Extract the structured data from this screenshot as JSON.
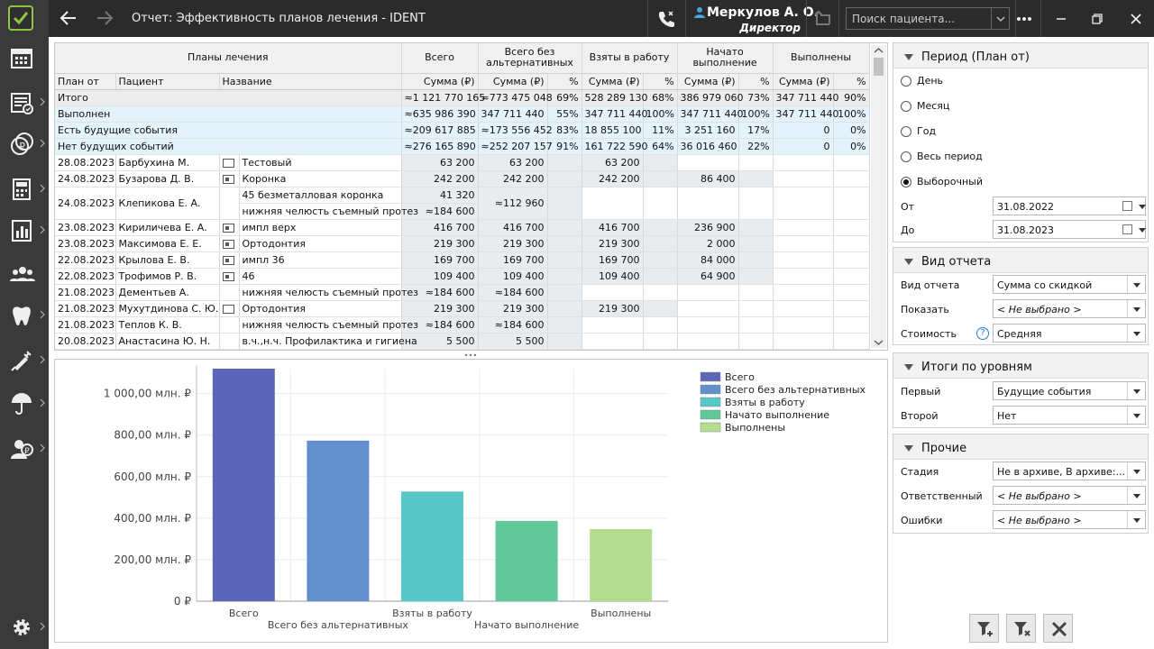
{
  "window": {
    "title": "Отчет: Эффективность планов лечения - IDENT",
    "user_name": "Меркулов А. О.",
    "user_role": "Директор",
    "search_placeholder": "Поиск пациента..."
  },
  "sidebar": [
    "calendar-icon",
    "ledger-icon",
    "finance-icon",
    "calculator-icon",
    "reports-icon",
    "patients-icon",
    "tooth-icon",
    "syringe-icon",
    "insurance-icon",
    "doctor-icon",
    "settings-icon"
  ],
  "table": {
    "header": {
      "plans": "Планы лечения",
      "total": "Всего",
      "no_alt": "Всего без альтернативных",
      "taken": "Взяты в работу",
      "started": "Начато выполнение",
      "done": "Выполнены",
      "plan_from": "План от",
      "patient": "Пациент",
      "name": "Название",
      "sum": "Сумма (₽)",
      "pct": "%"
    },
    "totals": [
      [
        "Итого",
        "",
        "",
        "≈1 121 770 165",
        "≈773 475 048",
        "69%",
        "528 289 130",
        "68%",
        "386 979 060",
        "73%",
        "347 711 440",
        "90%"
      ],
      [
        "Выполнен",
        "",
        "",
        "≈635 986 390",
        "347 711 440",
        "55%",
        "347 711 440",
        "100%",
        "347 711 440",
        "100%",
        "347 711 440",
        "100%"
      ],
      [
        "Есть будущие события",
        "",
        "",
        "≈209 617 885",
        "≈173 556 452",
        "83%",
        "18 855 100",
        "11%",
        "3 251 160",
        "17%",
        "0",
        "0%"
      ],
      [
        "Нет будущих событий",
        "",
        "",
        "≈276 165 890",
        "≈252 207 157",
        "91%",
        "161 722 590",
        "64%",
        "36 016 460",
        "22%",
        "0",
        "0%"
      ]
    ],
    "rows": [
      {
        "date": "28.08.2023",
        "patient": "Барбухина М.",
        "cb": "empty",
        "name": "Тестовый",
        "total": "63 200",
        "no_alt": "63 200",
        "pct1": "",
        "taken": "63 200",
        "pct2": "",
        "started": "",
        "pct3": "",
        "done": "",
        "pct4": ""
      },
      {
        "date": "24.08.2023",
        "patient": "Бузарова Д. В.",
        "cb": "filled",
        "name": "Коронка",
        "total": "242 200",
        "no_alt": "242 200",
        "pct1": "",
        "taken": "242 200",
        "pct2": "",
        "started": "86 400",
        "pct3": "",
        "done": "",
        "pct4": ""
      },
      {
        "date": "24.08.2023",
        "patient": "Клепикова Е. А.",
        "cb": "",
        "name": "45 безметалловая коронка",
        "name2": "нижняя челюсть съемный протез",
        "total": "41 320",
        "total2": "≈184 600",
        "no_alt": "≈112 960",
        "pct1": "",
        "taken": "",
        "pct2": "",
        "started": "",
        "pct3": "",
        "done": "",
        "pct4": ""
      },
      {
        "date": "23.08.2023",
        "patient": "Кириличева Е. А.",
        "cb": "filled",
        "name": "импл верх",
        "total": "416 700",
        "no_alt": "416 700",
        "pct1": "",
        "taken": "416 700",
        "pct2": "",
        "started": "236 900",
        "pct3": "",
        "done": "",
        "pct4": ""
      },
      {
        "date": "23.08.2023",
        "patient": "Максимова Е. Е.",
        "cb": "filled",
        "name": "Ортодонтия",
        "total": "219 300",
        "no_alt": "219 300",
        "pct1": "",
        "taken": "219 300",
        "pct2": "",
        "started": "2 000",
        "pct3": "",
        "done": "",
        "pct4": ""
      },
      {
        "date": "22.08.2023",
        "patient": "Крылова Е. В.",
        "cb": "filled",
        "name": "импл 36",
        "total": "169 700",
        "no_alt": "169 700",
        "pct1": "",
        "taken": "169 700",
        "pct2": "",
        "started": "84 000",
        "pct3": "",
        "done": "",
        "pct4": ""
      },
      {
        "date": "22.08.2023",
        "patient": "Трофимов Р. В.",
        "cb": "filled",
        "name": "46",
        "total": "109 400",
        "no_alt": "109 400",
        "pct1": "",
        "taken": "109 400",
        "pct2": "",
        "started": "64 900",
        "pct3": "",
        "done": "",
        "pct4": ""
      },
      {
        "date": "21.08.2023",
        "patient": "Дементьев А.",
        "cb": "",
        "name": "нижняя челюсть съемный протез",
        "total": "≈184 600",
        "no_alt": "≈184 600",
        "pct1": "",
        "taken": "",
        "pct2": "",
        "started": "",
        "pct3": "",
        "done": "",
        "pct4": ""
      },
      {
        "date": "21.08.2023",
        "patient": "Мухутдинова С. Ю.",
        "cb": "empty",
        "name": "Ортодонтия",
        "total": "219 300",
        "no_alt": "219 300",
        "pct1": "",
        "taken": "219 300",
        "pct2": "",
        "started": "",
        "pct3": "",
        "done": "",
        "pct4": ""
      },
      {
        "date": "21.08.2023",
        "patient": "Теплов К. В.",
        "cb": "",
        "name": "нижняя челюсть съемный протез",
        "total": "≈184 600",
        "no_alt": "≈184 600",
        "pct1": "",
        "taken": "",
        "pct2": "",
        "started": "",
        "pct3": "",
        "done": "",
        "pct4": ""
      },
      {
        "date": "20.08.2023",
        "patient": "Анастасина Ю. Н.",
        "cb": "",
        "name": "в.ч.,н.ч. Профилактика и гигиена",
        "total": "5 500",
        "no_alt": "5 500",
        "pct1": "",
        "taken": "",
        "pct2": "",
        "started": "",
        "pct3": "",
        "done": "",
        "pct4": ""
      }
    ]
  },
  "chart_data": {
    "type": "bar",
    "categories": [
      "Всего",
      "Всего без альтернативных",
      "Взяты в работу",
      "Начато выполнение",
      "Выполнены"
    ],
    "values": [
      1121.77,
      773.48,
      528.29,
      386.98,
      347.71
    ],
    "unit": "млн. ₽",
    "ylim": [
      0,
      1120
    ],
    "yticks": [
      "0 ₽",
      "200,00 млн. ₽",
      "400,00 млн. ₽",
      "600,00 млн. ₽",
      "800,00 млн. ₽",
      "1 000,00 млн. ₽"
    ],
    "ytick_values": [
      0,
      200,
      400,
      600,
      800,
      1000
    ],
    "colors": [
      "#5b66b8",
      "#6390cc",
      "#57c7c7",
      "#62c79a",
      "#b4dc8f"
    ],
    "legend": [
      "Всего",
      "Всего без альтернативных",
      "Взяты в работу",
      "Начато выполнение",
      "Выполнены"
    ],
    "legend_position": "top-right",
    "grid": true
  },
  "right": {
    "period": {
      "title": "Период (План от)",
      "options": [
        "День",
        "Месяц",
        "Год",
        "Весь период",
        "Выборочный"
      ],
      "selected": 4,
      "from_label": "От",
      "from_value": "31.08.2022",
      "to_label": "До",
      "to_value": "31.08.2023"
    },
    "report": {
      "title": "Вид отчета",
      "type_label": "Вид отчета",
      "type_value": "Сумма со скидкой",
      "show_label": "Показать",
      "show_value": "< Не выбрано >",
      "cost_label": "Стоимость",
      "cost_value": "Средняя"
    },
    "levels": {
      "title": "Итоги по уровням",
      "first_label": "Первый",
      "first_value": "Будущие события",
      "second_label": "Второй",
      "second_value": "Нет"
    },
    "other": {
      "title": "Прочие",
      "stage_label": "Стадия",
      "stage_value": "Не в архиве, В архиве:...",
      "resp_label": "Ответственный",
      "resp_value": "< Не выбрано >",
      "err_label": "Ошибки",
      "err_value": "< Не выбрано >"
    }
  },
  "help_glyph": "?"
}
